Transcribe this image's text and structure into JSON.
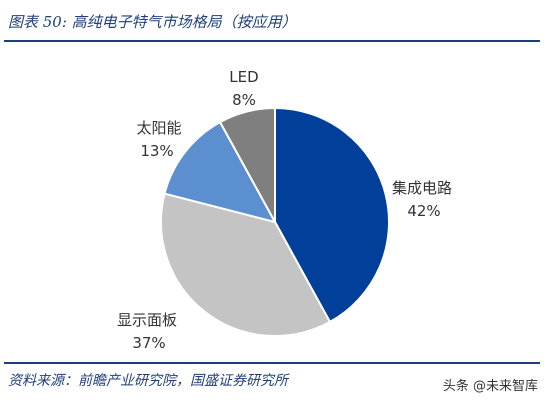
{
  "title": "图表 50:  高纯电子特气市场格局（按应用）",
  "source": "资料来源：前瞻产业研究院，国盛证券研究所",
  "watermark": "头条 @未来智库",
  "chart_data": {
    "type": "pie",
    "title": "图表 50:  高纯电子特气市场格局（按应用）",
    "slices": [
      {
        "label": "集成电路",
        "value": 42,
        "value_label": "42%",
        "color": "#003f9a"
      },
      {
        "label": "显示面板",
        "value": 37,
        "value_label": "37%",
        "color": "#c4c4c4"
      },
      {
        "label": "太阳能",
        "value": 13,
        "value_label": "13%",
        "color": "#5b8fd0"
      },
      {
        "label": "LED",
        "value": 8,
        "value_label": "8%",
        "color": "#7f7f7f"
      }
    ],
    "start": "12 o'clock",
    "direction": "clockwise",
    "legend": "none",
    "labels": "outside"
  }
}
